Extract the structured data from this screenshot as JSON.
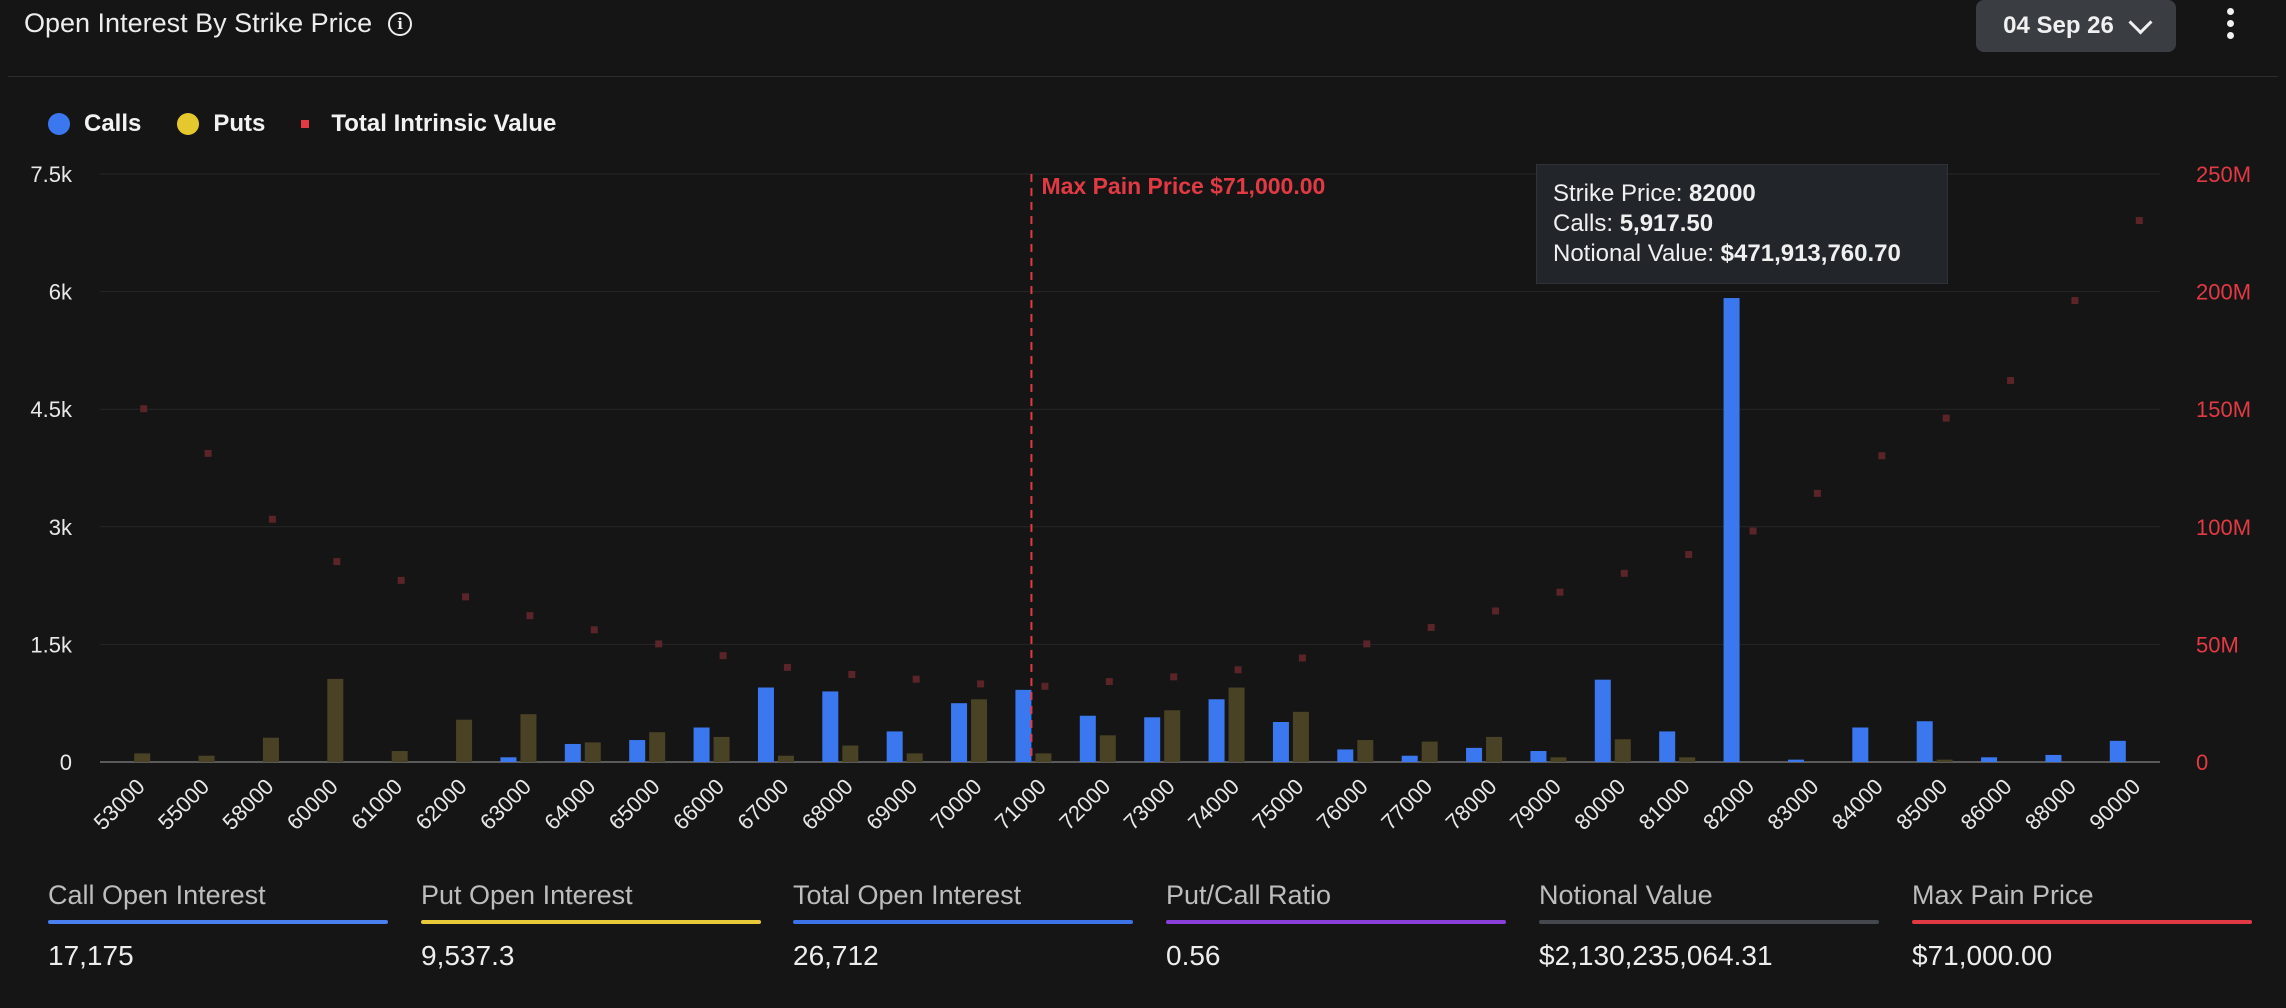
{
  "header": {
    "title": "Open Interest By Strike Price",
    "date_select": "04 Sep 26"
  },
  "legend": {
    "calls": "Calls",
    "puts": "Puts",
    "total": "Total Intrinsic Value"
  },
  "colors": {
    "calls": "#3b78f0",
    "puts": "#4a4224",
    "puts_legend": "#e5c72e",
    "total": "#e23a44",
    "total_faint": "#5a2428"
  },
  "chart_data": {
    "type": "bar",
    "categories": [
      "53000",
      "55000",
      "58000",
      "60000",
      "61000",
      "62000",
      "63000",
      "64000",
      "65000",
      "66000",
      "67000",
      "68000",
      "69000",
      "70000",
      "71000",
      "72000",
      "73000",
      "74000",
      "75000",
      "76000",
      "77000",
      "78000",
      "79000",
      "80000",
      "81000",
      "82000",
      "83000",
      "84000",
      "85000",
      "86000",
      "88000",
      "90000"
    ],
    "series": [
      {
        "name": "Calls",
        "axis": "left",
        "values": [
          0,
          0,
          0,
          0,
          0,
          0,
          60,
          230,
          280,
          440,
          950,
          900,
          390,
          750,
          920,
          590,
          570,
          800,
          510,
          160,
          80,
          180,
          140,
          1050,
          390,
          5917.5,
          30,
          440,
          520,
          60,
          90,
          270
        ]
      },
      {
        "name": "Puts",
        "axis": "left",
        "values": [
          110,
          80,
          310,
          1060,
          140,
          540,
          610,
          250,
          380,
          320,
          80,
          210,
          110,
          800,
          110,
          340,
          660,
          950,
          640,
          280,
          260,
          320,
          60,
          290,
          60,
          0,
          0,
          0,
          30,
          0,
          0,
          0
        ]
      },
      {
        "name": "Total Intrinsic Value",
        "axis": "right",
        "type": "scatter",
        "values": [
          150000000,
          131000000,
          103000000,
          85000000,
          77000000,
          70000000,
          62000000,
          56000000,
          50000000,
          45000000,
          40000000,
          37000000,
          35000000,
          33000000,
          32000000,
          34000000,
          36000000,
          39000000,
          44000000,
          50000000,
          57000000,
          64000000,
          72000000,
          80000000,
          88000000,
          98000000,
          114000000,
          130000000,
          146000000,
          162000000,
          196000000,
          230000000
        ]
      }
    ],
    "y_left": {
      "ylim": [
        0,
        7500
      ],
      "ticks": [
        0,
        1500,
        3000,
        4500,
        6000,
        7500
      ],
      "tick_labels": [
        "0",
        "1.5k",
        "3k",
        "4.5k",
        "6k",
        "7.5k"
      ]
    },
    "y_right": {
      "ylim": [
        0,
        250000000
      ],
      "ticks": [
        0,
        50000000,
        100000000,
        150000000,
        200000000,
        250000000
      ],
      "tick_labels": [
        "0",
        "50M",
        "100M",
        "150M",
        "200M",
        "250M"
      ]
    },
    "max_pain": {
      "category": "71000",
      "label": "Max Pain Price $71,000.00"
    },
    "highlight_index": 25,
    "grid": true,
    "legend_position": "top-left"
  },
  "tooltip": {
    "strike_label": "Strike Price: ",
    "strike_value": "82000",
    "calls_label": "Calls: ",
    "calls_value": "5,917.50",
    "notional_label": "Notional Value: ",
    "notional_value": "$471,913,760.70"
  },
  "stats": [
    {
      "label": "Call Open Interest",
      "value": "17,175",
      "color": "#4a7ff0"
    },
    {
      "label": "Put Open Interest",
      "value": "9,537.3",
      "color": "#e8c93a"
    },
    {
      "label": "Total Open Interest",
      "value": "26,712",
      "color": "#3d73e8"
    },
    {
      "label": "Put/Call Ratio",
      "value": "0.56",
      "color": "#8a3fd8"
    },
    {
      "label": "Notional Value",
      "value": "$2,130,235,064.31",
      "color": "#45484e"
    },
    {
      "label": "Max Pain Price",
      "value": "$71,000.00",
      "color": "#e23a44"
    }
  ]
}
